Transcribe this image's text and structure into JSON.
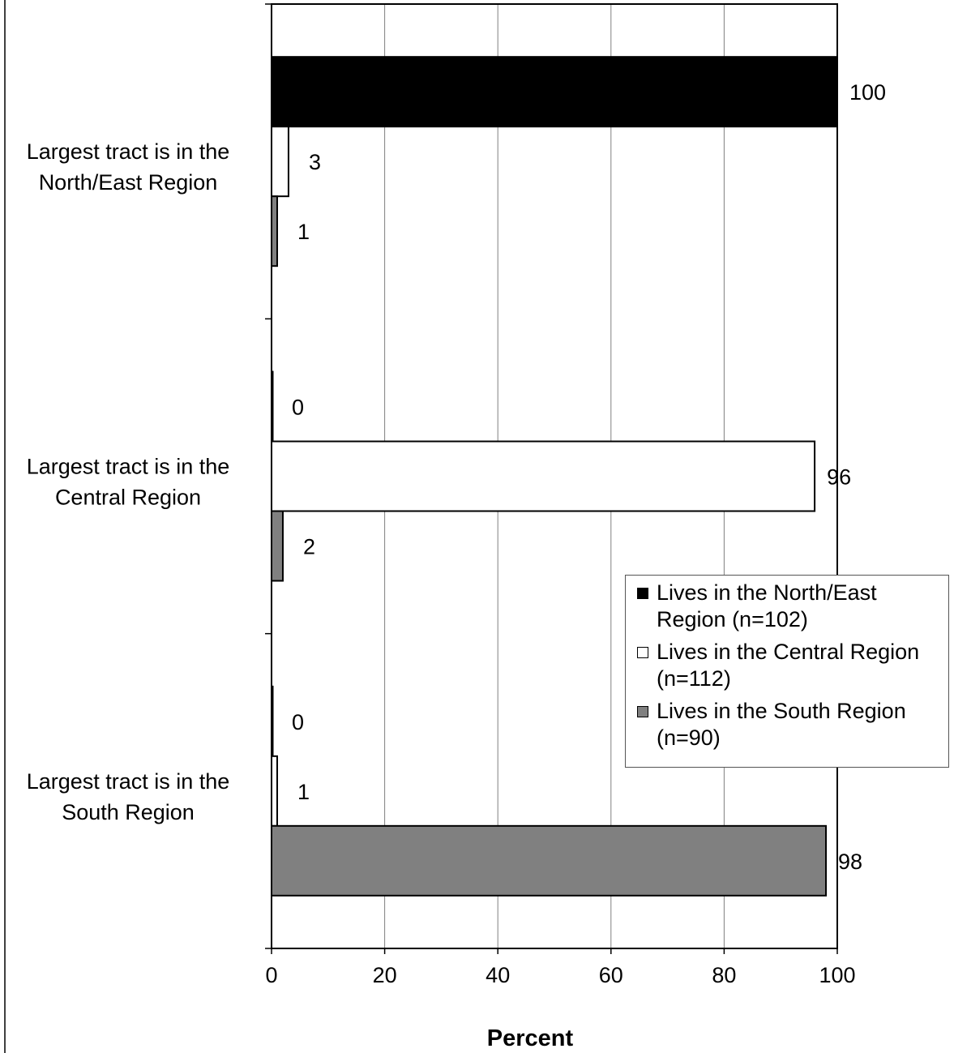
{
  "chart_data": {
    "type": "bar",
    "orientation": "horizontal",
    "categories": [
      "Largest tract is in the North/East Region",
      "Largest tract is in the Central Region",
      "Largest tract is in the South Region"
    ],
    "category_label_lines": [
      [
        "Largest tract is in the",
        "North/East Region"
      ],
      [
        "Largest tract is in the",
        "Central Region"
      ],
      [
        "Largest tract is in the",
        "South Region"
      ]
    ],
    "series": [
      {
        "name": "Lives in the North/East Region (n=102)",
        "legend_lines": [
          "Lives in the North/East",
          "Region (n=102)"
        ],
        "color": "#000000",
        "values": [
          100,
          0,
          0
        ],
        "labels": [
          "100",
          "0",
          "0"
        ]
      },
      {
        "name": "Lives in the Central Region (n=112)",
        "legend_lines": [
          "Lives in the Central Region",
          "(n=112)"
        ],
        "color": "#ffffff",
        "values": [
          3,
          96,
          1
        ],
        "labels": [
          "3",
          "96",
          "1"
        ]
      },
      {
        "name": "Lives in the South Region (n=90)",
        "legend_lines": [
          "Lives in the South Region",
          "(n=90)"
        ],
        "color": "#808080",
        "values": [
          1,
          2,
          98
        ],
        "labels": [
          "1",
          "2",
          "98"
        ]
      }
    ],
    "xlabel": "Percent",
    "ylabel": "",
    "title": "",
    "xlim": [
      0,
      100
    ],
    "xticks": [
      0,
      20,
      40,
      60,
      80,
      100
    ],
    "grid": true,
    "legend_position": "lower-right"
  }
}
